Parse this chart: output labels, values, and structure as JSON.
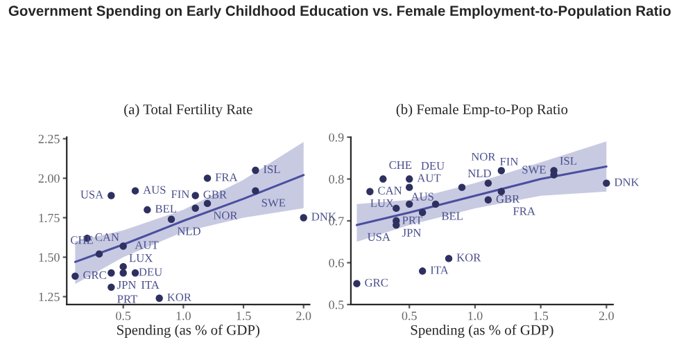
{
  "chart_data": [
    {
      "type": "scatter",
      "title": "Government Spending on Early Childhood Education vs. Female Employment-to-Population Ratio",
      "subtitle": "(a) Total Fertility Rate",
      "xlabel": "Spending (as % of GDP)",
      "series": [
        {
          "type": "scatter",
          "marker": "circle",
          "color": "#2e3060",
          "x": [
            0.4,
            0.6,
            0.7,
            1.1,
            1.2,
            1.6,
            1.6,
            1.2,
            1.1,
            0.9,
            2.0,
            0.2,
            0.5,
            0.3,
            0.1,
            0.4,
            0.5,
            0.5,
            0.6,
            0.4,
            0.8
          ],
          "values": [
            1.89,
            1.92,
            1.8,
            1.89,
            2.0,
            2.05,
            1.92,
            1.84,
            1.81,
            1.74,
            1.75,
            1.62,
            1.57,
            1.52,
            1.38,
            1.4,
            1.44,
            1.4,
            1.4,
            1.31,
            1.24
          ]
        },
        {
          "type": "line",
          "color": "#4a4f9e",
          "x": [
            0.1,
            0.5,
            1.0,
            1.5,
            2.0
          ],
          "values": [
            1.47,
            1.58,
            1.73,
            1.87,
            2.02
          ],
          "lower": [
            1.33,
            1.5,
            1.66,
            1.75,
            1.81
          ],
          "upper": [
            1.6,
            1.67,
            1.8,
            1.99,
            2.23
          ]
        }
      ],
      "annotations": [
        {
          "text": "USA",
          "x": 0.4,
          "y": 1.89
        },
        {
          "text": "AUS",
          "x": 0.6,
          "y": 1.92
        },
        {
          "text": "BEL",
          "x": 0.7,
          "y": 1.8
        },
        {
          "text": "GBR",
          "x": 1.1,
          "y": 1.89
        },
        {
          "text": "FRA",
          "x": 1.2,
          "y": 2.0
        },
        {
          "text": "ISL",
          "x": 1.6,
          "y": 2.05
        },
        {
          "text": "SWE",
          "x": 1.6,
          "y": 1.92
        },
        {
          "text": "NOR",
          "x": 1.2,
          "y": 1.84
        },
        {
          "text": "FIN",
          "x": 1.1,
          "y": 1.81
        },
        {
          "text": "NLD",
          "x": 0.9,
          "y": 1.74
        },
        {
          "text": "DNK",
          "x": 2.0,
          "y": 1.75
        },
        {
          "text": "CAN",
          "x": 0.2,
          "y": 1.62
        },
        {
          "text": "LUX",
          "x": 0.5,
          "y": 1.57
        },
        {
          "text": "CHE",
          "x": 0.3,
          "y": 1.52
        },
        {
          "text": "GRC",
          "x": 0.1,
          "y": 1.38
        },
        {
          "text": "JPN",
          "x": 0.4,
          "y": 1.4
        },
        {
          "text": "AUT",
          "x": 0.5,
          "y": 1.44
        },
        {
          "text": "DEU",
          "x": 0.5,
          "y": 1.4
        },
        {
          "text": "ITA",
          "x": 0.6,
          "y": 1.4
        },
        {
          "text": "PRT",
          "x": 0.4,
          "y": 1.31
        },
        {
          "text": "KOR",
          "x": 0.8,
          "y": 1.24
        }
      ],
      "xlim": [
        0.03,
        2.05
      ],
      "xticks": [
        {
          "value": 0.5,
          "label": "0.5"
        },
        {
          "value": 1.0,
          "label": "1.0"
        },
        {
          "value": 1.5,
          "label": "1.5"
        },
        {
          "value": 2.0,
          "label": "2.0"
        }
      ],
      "ylim": [
        1.2,
        2.26
      ],
      "yticks": [
        {
          "value": 1.25,
          "label": "1.25"
        },
        {
          "value": 1.5,
          "label": "1.50"
        },
        {
          "value": 1.75,
          "label": "1.75"
        },
        {
          "value": 2.0,
          "label": "2.00"
        },
        {
          "value": 2.25,
          "label": "2.25"
        }
      ],
      "grid": false,
      "legend": false
    },
    {
      "type": "scatter",
      "subtitle": "(b) Female Emp-to-Pop Ratio",
      "xlabel": "Spending (as % of GDP)",
      "series": [
        {
          "type": "scatter",
          "marker": "circle",
          "color": "#2e3060",
          "x": [
            0.3,
            0.2,
            0.5,
            0.5,
            0.5,
            0.4,
            0.9,
            1.1,
            1.2,
            1.6,
            1.6,
            2.0,
            0.7,
            1.1,
            1.2,
            0.6,
            0.4,
            0.4,
            0.8,
            0.6,
            0.1
          ],
          "values": [
            0.8,
            0.77,
            0.8,
            0.78,
            0.74,
            0.73,
            0.78,
            0.79,
            0.82,
            0.82,
            0.81,
            0.79,
            0.74,
            0.75,
            0.77,
            0.72,
            0.7,
            0.69,
            0.61,
            0.58,
            0.55
          ]
        },
        {
          "type": "line",
          "color": "#4a4f9e",
          "x": [
            0.1,
            0.5,
            1.0,
            1.5,
            2.0
          ],
          "values": [
            0.69,
            0.72,
            0.76,
            0.8,
            0.83
          ],
          "lower": [
            0.65,
            0.69,
            0.73,
            0.76,
            0.77
          ],
          "upper": [
            0.74,
            0.75,
            0.79,
            0.84,
            0.89
          ]
        }
      ],
      "annotations": [
        {
          "text": "CHE",
          "x": 0.3,
          "y": 0.8
        },
        {
          "text": "CAN",
          "x": 0.2,
          "y": 0.77
        },
        {
          "text": "AUT",
          "x": 0.5,
          "y": 0.8
        },
        {
          "text": "DEU",
          "x": 0.5,
          "y": 0.78
        },
        {
          "text": "LUX",
          "x": 0.5,
          "y": 0.74
        },
        {
          "text": "PRT",
          "x": 0.4,
          "y": 0.73
        },
        {
          "text": "NLD",
          "x": 0.9,
          "y": 0.78
        },
        {
          "text": "FIN",
          "x": 1.1,
          "y": 0.79
        },
        {
          "text": "NOR",
          "x": 1.2,
          "y": 0.82
        },
        {
          "text": "SWE",
          "x": 1.6,
          "y": 0.82
        },
        {
          "text": "ISL",
          "x": 1.6,
          "y": 0.81
        },
        {
          "text": "DNK",
          "x": 2.0,
          "y": 0.79
        },
        {
          "text": "BEL",
          "x": 0.7,
          "y": 0.74
        },
        {
          "text": "GBR",
          "x": 1.1,
          "y": 0.75
        },
        {
          "text": "FRA",
          "x": 1.2,
          "y": 0.77
        },
        {
          "text": "AUS",
          "x": 0.6,
          "y": 0.72
        },
        {
          "text": "JPN",
          "x": 0.4,
          "y": 0.7
        },
        {
          "text": "USA",
          "x": 0.4,
          "y": 0.69
        },
        {
          "text": "KOR",
          "x": 0.8,
          "y": 0.61
        },
        {
          "text": "ITA",
          "x": 0.6,
          "y": 0.58
        },
        {
          "text": "GRC",
          "x": 0.1,
          "y": 0.55
        }
      ],
      "xlim": [
        0.055,
        2.05
      ],
      "xticks": [
        {
          "value": 0.5,
          "label": "0.5"
        },
        {
          "value": 1.0,
          "label": "1.0"
        },
        {
          "value": 1.5,
          "label": "1.5"
        },
        {
          "value": 2.0,
          "label": "2.0"
        }
      ],
      "ylim": [
        0.5,
        0.9
      ],
      "yticks": [
        0.5,
        0.6,
        0.7,
        0.8,
        0.9
      ],
      "grid": false,
      "legend": false
    }
  ]
}
